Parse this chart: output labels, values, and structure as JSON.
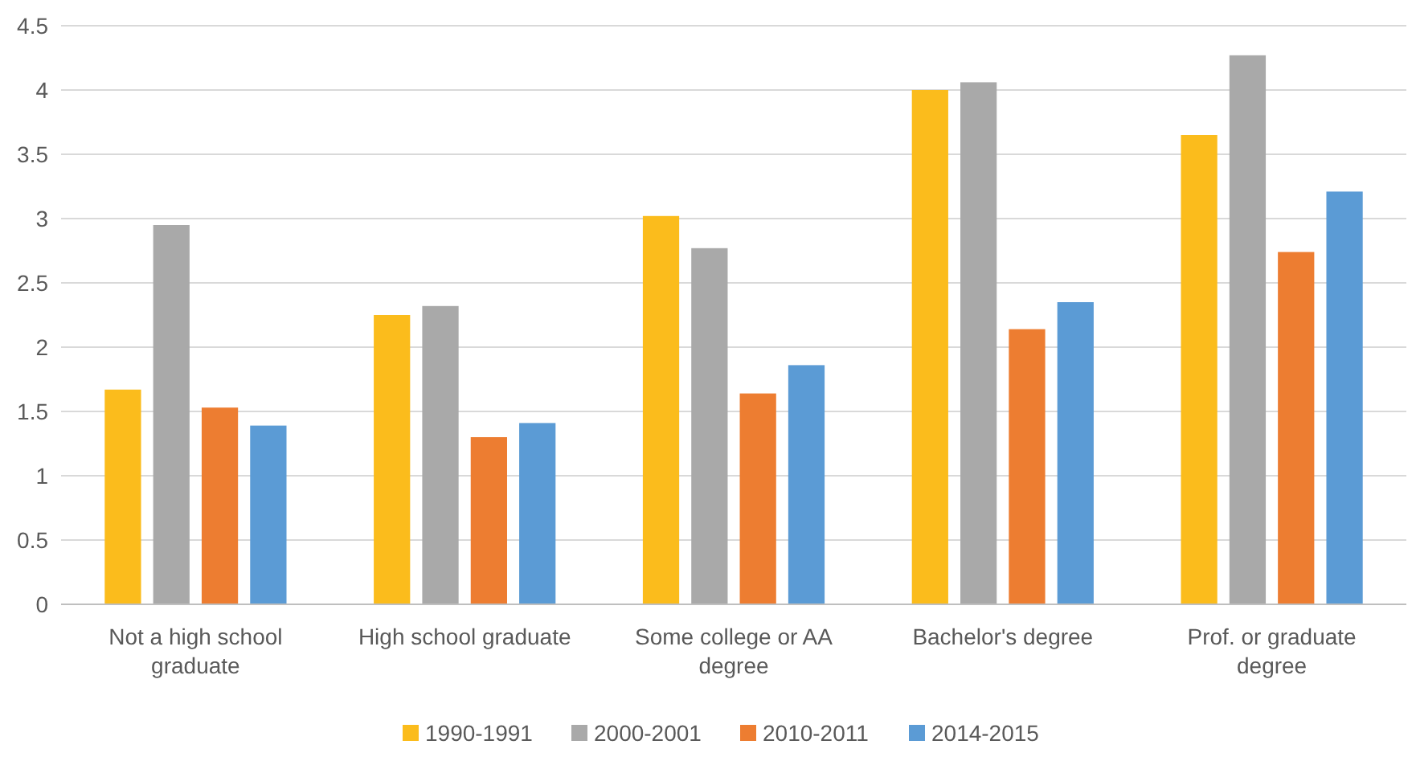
{
  "chart_data": {
    "type": "bar",
    "categories": [
      "Not a high school graduate",
      "High school graduate",
      "Some college or AA degree",
      "Bachelor's degree",
      "Prof. or graduate degree"
    ],
    "series": [
      {
        "name": "1990-1991",
        "color": "#fbbc1c",
        "values": [
          1.67,
          2.25,
          3.02,
          4.0,
          3.65
        ]
      },
      {
        "name": "2000-2001",
        "color": "#a9a9a9",
        "values": [
          2.95,
          2.32,
          2.77,
          4.06,
          4.27
        ]
      },
      {
        "name": "2010-2011",
        "color": "#ed7d31",
        "values": [
          1.53,
          1.3,
          1.64,
          2.14,
          2.74
        ]
      },
      {
        "name": "2014-2015",
        "color": "#5b9bd5",
        "values": [
          1.39,
          1.41,
          1.86,
          2.35,
          3.21
        ]
      }
    ],
    "ylim": [
      0,
      4.5
    ],
    "yticks": [
      0,
      0.5,
      1,
      1.5,
      2,
      2.5,
      3,
      3.5,
      4,
      4.5
    ],
    "grid": "y",
    "legend": "bottom"
  }
}
